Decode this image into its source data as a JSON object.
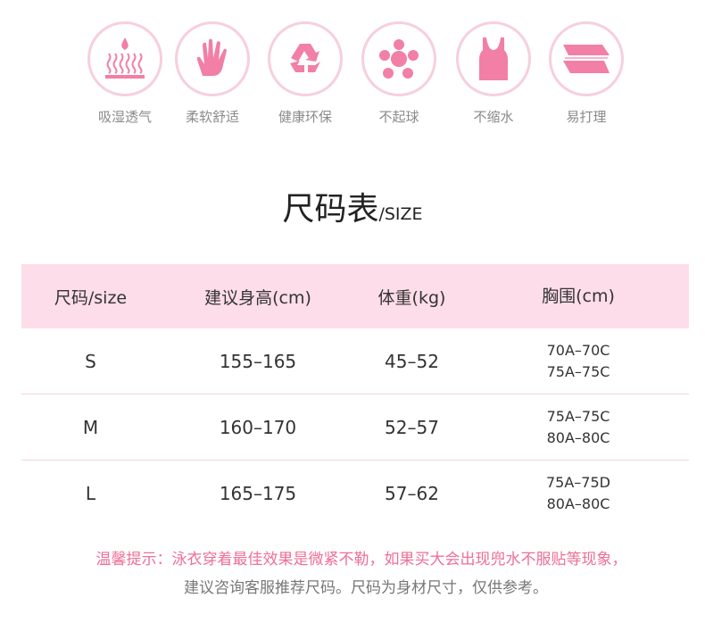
{
  "features": [
    {
      "icon": "moisture-wicking-icon",
      "label": "吸湿透气"
    },
    {
      "icon": "hand-icon",
      "label": "柔软舒适"
    },
    {
      "icon": "recycle-icon",
      "label": "健康环保"
    },
    {
      "icon": "flower-icon",
      "label": "不起球"
    },
    {
      "icon": "tank-top-icon",
      "label": "不缩水"
    },
    {
      "icon": "folded-cloth-icon",
      "label": "易打理"
    }
  ],
  "title": {
    "main": "尺码表",
    "sub": "/SIZE"
  },
  "table": {
    "headers": [
      "尺码/size",
      "建议身高(cm)",
      "体重(kg)",
      "胸围(cm)"
    ],
    "rows": [
      {
        "size": "S",
        "height": "155–165",
        "weight": "45–52",
        "bust": [
          "70A–70C",
          "75A–75C"
        ]
      },
      {
        "size": "M",
        "height": "160–170",
        "weight": "52–57",
        "bust": [
          "75A–75C",
          "80A–80C"
        ]
      },
      {
        "size": "L",
        "height": "165–175",
        "weight": "57–62",
        "bust": [
          "75A–75D",
          "80A–80C"
        ]
      }
    ]
  },
  "tip": {
    "line1": "温馨提示：泳衣穿着最佳效果是微紧不勒，如果买大会出现兜水不服贴等现象，",
    "line2": "建议咨询客服推荐尺码。尺码为身材尺寸，仅供参考。"
  },
  "colors": {
    "accent": "#f27fa5",
    "header_bg": "#fddde9",
    "circle": "#f7cfdc"
  }
}
